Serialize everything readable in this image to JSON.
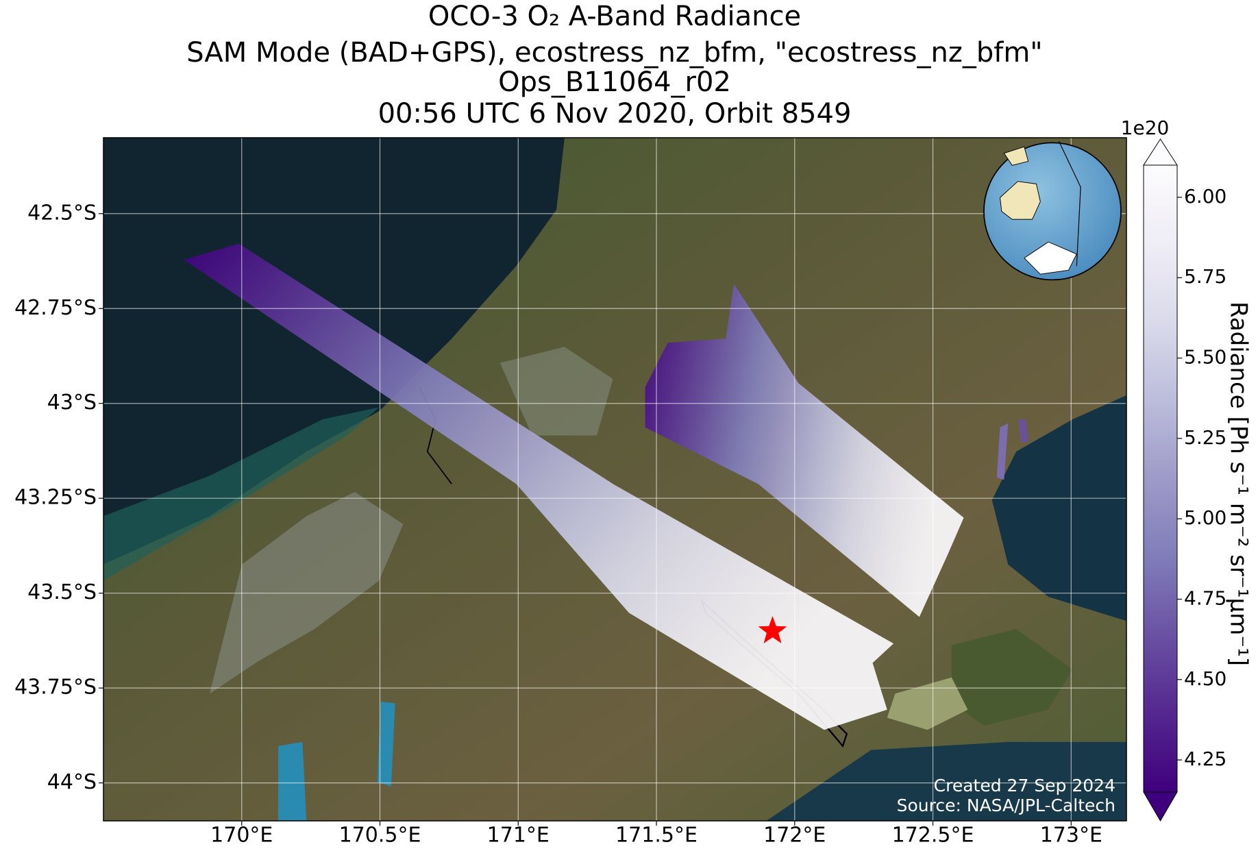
{
  "chart_data": {
    "type": "map",
    "title": [
      "OCO-3 O₂ A-Band Radiance",
      "SAM Mode (BAD+GPS), ecostress_nz_bfm, \"ecostress_nz_bfm\"",
      "Ops_B11064_r02",
      "00:56 UTC 6 Nov 2020, Orbit 8549"
    ],
    "xlim": [
      169.5,
      173.2
    ],
    "xticks": [
      {
        "value": 170,
        "label": "170°E"
      },
      {
        "value": 170.5,
        "label": "170.5°E"
      },
      {
        "value": 171,
        "label": "171°E"
      },
      {
        "value": 171.5,
        "label": "171.5°E"
      },
      {
        "value": 172,
        "label": "172°E"
      },
      {
        "value": 172.5,
        "label": "172.5°E"
      },
      {
        "value": 173,
        "label": "173°E"
      }
    ],
    "ylim": [
      -44.1,
      -42.3
    ],
    "yticks": [
      {
        "value": -42.5,
        "label": "42.5°S"
      },
      {
        "value": -42.75,
        "label": "42.75°S"
      },
      {
        "value": -43,
        "label": "43°S"
      },
      {
        "value": -43.25,
        "label": "43.25°S"
      },
      {
        "value": -43.5,
        "label": "43.5°S"
      },
      {
        "value": -43.75,
        "label": "43.75°S"
      },
      {
        "value": -44,
        "label": "44°S"
      }
    ],
    "grid": true,
    "target": {
      "lon": 171.92,
      "lat": -43.6,
      "color": "#ff0000"
    },
    "colorbar": {
      "label": "Radiance [Ph s⁻¹ m⁻² sr⁻¹μm⁻¹]",
      "exponent": "1e20",
      "clim": [
        4.15,
        6.1
      ],
      "ticks": [
        4.25,
        {
          "value": 4.5,
          "label": "4.50"
        },
        4.75,
        {
          "value": 5,
          "label": "5.00"
        },
        5.25,
        {
          "value": 5.5,
          "label": "5.50"
        },
        5.75,
        {
          "value": 6,
          "label": "6.00"
        }
      ],
      "colormap": [
        "#3f007d",
        "#54278f",
        "#6a51a3",
        "#807dba",
        "#9e9ac8",
        "#bcbddc",
        "#dadaeb",
        "#efedf5",
        "#fcfbfd"
      ]
    },
    "annotations": [
      "Created 27 Sep 2024",
      "Source: NASA/JPL-Caltech"
    ]
  }
}
